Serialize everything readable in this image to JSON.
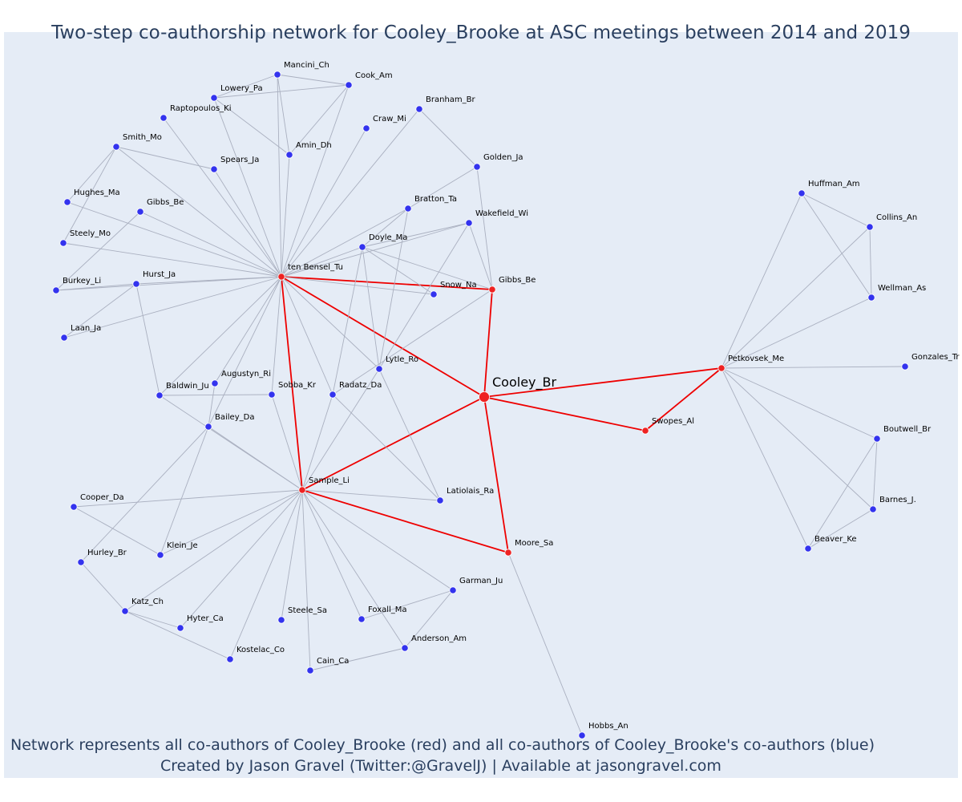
{
  "title": "Two-step co-authorship network for Cooley_Brooke at ASC meetings between 2014 and 2019",
  "caption_line1": "Network represents all co-authors of Cooley_Brooke (red) and all co-authors of Cooley_Brooke's co-authors (blue)",
  "caption_line2": "Created by Jason Gravel (Twitter:@GravelJ) | Available at jasongravel.com",
  "colors": {
    "plot_bg": "#e5ecf6",
    "text": "#2a3f5f",
    "edge_gray": "#aab0c0",
    "edge_red": "#ee0000",
    "node_red": "#ee2222",
    "node_blue": "#3333ee"
  },
  "graph": {
    "ego": "Cooley_Br",
    "nodes": [
      {
        "id": "Cooley_Br",
        "label": "Cooley_Br",
        "group": "ego"
      },
      {
        "id": "ten Bensel_Tu",
        "label": "ten Bensel_Tu",
        "group": "coauthor"
      },
      {
        "id": "Gibbs_Be2",
        "label": "Gibbs_Be",
        "group": "coauthor"
      },
      {
        "id": "Sample_Li",
        "label": "Sample_Li",
        "group": "coauthor"
      },
      {
        "id": "Moore_Sa",
        "label": "Moore_Sa",
        "group": "coauthor"
      },
      {
        "id": "Swopes_Al",
        "label": "Swopes_Al",
        "group": "coauthor"
      },
      {
        "id": "Petkovsek_Me",
        "label": "Petkovsek_Me",
        "group": "coauthor"
      },
      {
        "id": "Mancini_Ch",
        "label": "Mancini_Ch",
        "group": "second"
      },
      {
        "id": "Cook_Am",
        "label": "Cook_Am",
        "group": "second"
      },
      {
        "id": "Lowery_Pa",
        "label": "Lowery_Pa",
        "group": "second"
      },
      {
        "id": "Raptopoulos_Ki",
        "label": "Raptopoulos_Ki",
        "group": "second"
      },
      {
        "id": "Branham_Br",
        "label": "Branham_Br",
        "group": "second"
      },
      {
        "id": "Craw_Mi",
        "label": "Craw_Mi",
        "group": "second"
      },
      {
        "id": "Smith_Mo",
        "label": "Smith_Mo",
        "group": "second"
      },
      {
        "id": "Amin_Dh",
        "label": "Amin_Dh",
        "group": "second"
      },
      {
        "id": "Spears_Ja",
        "label": "Spears_Ja",
        "group": "second"
      },
      {
        "id": "Golden_Ja",
        "label": "Golden_Ja",
        "group": "second"
      },
      {
        "id": "Hughes_Ma",
        "label": "Hughes_Ma",
        "group": "second"
      },
      {
        "id": "Gibbs_Be",
        "label": "Gibbs_Be",
        "group": "second"
      },
      {
        "id": "Bratton_Ta",
        "label": "Bratton_Ta",
        "group": "second"
      },
      {
        "id": "Wakefield_Wi",
        "label": "Wakefield_Wi",
        "group": "second"
      },
      {
        "id": "Steely_Mo",
        "label": "Steely_Mo",
        "group": "second"
      },
      {
        "id": "Doyle_Ma",
        "label": "Doyle_Ma",
        "group": "second"
      },
      {
        "id": "Hurst_Ja",
        "label": "Hurst_Ja",
        "group": "second"
      },
      {
        "id": "Burkey_Li",
        "label": "Burkey_Li",
        "group": "second"
      },
      {
        "id": "Snow_Na",
        "label": "Snow_Na",
        "group": "second"
      },
      {
        "id": "Laan_Ja",
        "label": "Laan_Ja",
        "group": "second"
      },
      {
        "id": "Lytle_Ro",
        "label": "Lytle_Ro",
        "group": "second"
      },
      {
        "id": "Augustyn_Ri",
        "label": "Augustyn_Ri",
        "group": "second"
      },
      {
        "id": "Baldwin_Ju",
        "label": "Baldwin_Ju",
        "group": "second"
      },
      {
        "id": "Sobba_Kr",
        "label": "Sobba_Kr",
        "group": "second"
      },
      {
        "id": "Radatz_Da",
        "label": "Radatz_Da",
        "group": "second"
      },
      {
        "id": "Bailey_Da",
        "label": "Bailey_Da",
        "group": "second"
      },
      {
        "id": "Latiolais_Ra",
        "label": "Latiolais_Ra",
        "group": "second"
      },
      {
        "id": "Cooper_Da",
        "label": "Cooper_Da",
        "group": "second"
      },
      {
        "id": "Klein_Je",
        "label": "Klein_Je",
        "group": "second"
      },
      {
        "id": "Hurley_Br",
        "label": "Hurley_Br",
        "group": "second"
      },
      {
        "id": "Garman_Ju",
        "label": "Garman_Ju",
        "group": "second"
      },
      {
        "id": "Katz_Ch",
        "label": "Katz_Ch",
        "group": "second"
      },
      {
        "id": "Hyter_Ca",
        "label": "Hyter_Ca",
        "group": "second"
      },
      {
        "id": "Steele_Sa",
        "label": "Steele_Sa",
        "group": "second"
      },
      {
        "id": "Foxall_Ma",
        "label": "Foxall_Ma",
        "group": "second"
      },
      {
        "id": "Anderson_Am",
        "label": "Anderson_Am",
        "group": "second"
      },
      {
        "id": "Kostelac_Co",
        "label": "Kostelac_Co",
        "group": "second"
      },
      {
        "id": "Cain_Ca",
        "label": "Cain_Ca",
        "group": "second"
      },
      {
        "id": "Hobbs_An",
        "label": "Hobbs_An",
        "group": "second"
      },
      {
        "id": "Huffman_Am",
        "label": "Huffman_Am",
        "group": "second"
      },
      {
        "id": "Collins_An",
        "label": "Collins_An",
        "group": "second"
      },
      {
        "id": "Wellman_As",
        "label": "Wellman_As",
        "group": "second"
      },
      {
        "id": "Gonzales_Tr",
        "label": "Gonzales_Tr",
        "group": "second"
      },
      {
        "id": "Boutwell_Br",
        "label": "Boutwell_Br",
        "group": "second"
      },
      {
        "id": "Barnes_J",
        "label": "Barnes_J.",
        "group": "second"
      },
      {
        "id": "Beaver_Ke",
        "label": "Beaver_Ke",
        "group": "second"
      }
    ],
    "edges": [
      [
        "Cooley_Br",
        "ten Bensel_Tu"
      ],
      [
        "Cooley_Br",
        "Gibbs_Be2"
      ],
      [
        "Cooley_Br",
        "Sample_Li"
      ],
      [
        "Cooley_Br",
        "Moore_Sa"
      ],
      [
        "Cooley_Br",
        "Swopes_Al"
      ],
      [
        "Cooley_Br",
        "Petkovsek_Me"
      ],
      [
        "ten Bensel_Tu",
        "Gibbs_Be2"
      ],
      [
        "ten Bensel_Tu",
        "Sample_Li"
      ],
      [
        "Sample_Li",
        "Moore_Sa"
      ],
      [
        "Swopes_Al",
        "Petkovsek_Me"
      ],
      [
        "ten Bensel_Tu",
        "Mancini_Ch"
      ],
      [
        "ten Bensel_Tu",
        "Cook_Am"
      ],
      [
        "ten Bensel_Tu",
        "Lowery_Pa"
      ],
      [
        "ten Bensel_Tu",
        "Raptopoulos_Ki"
      ],
      [
        "ten Bensel_Tu",
        "Smith_Mo"
      ],
      [
        "ten Bensel_Tu",
        "Amin_Dh"
      ],
      [
        "ten Bensel_Tu",
        "Spears_Ja"
      ],
      [
        "ten Bensel_Tu",
        "Hughes_Ma"
      ],
      [
        "ten Bensel_Tu",
        "Gibbs_Be"
      ],
      [
        "ten Bensel_Tu",
        "Steely_Mo"
      ],
      [
        "ten Bensel_Tu",
        "Burkey_Li"
      ],
      [
        "ten Bensel_Tu",
        "Hurst_Ja"
      ],
      [
        "ten Bensel_Tu",
        "Laan_Ja"
      ],
      [
        "ten Bensel_Tu",
        "Craw_Mi"
      ],
      [
        "ten Bensel_Tu",
        "Branham_Br"
      ],
      [
        "ten Bensel_Tu",
        "Bratton_Ta"
      ],
      [
        "ten Bensel_Tu",
        "Wakefield_Wi"
      ],
      [
        "ten Bensel_Tu",
        "Doyle_Ma"
      ],
      [
        "ten Bensel_Tu",
        "Snow_Na"
      ],
      [
        "ten Bensel_Tu",
        "Lytle_Ro"
      ],
      [
        "ten Bensel_Tu",
        "Baldwin_Ju"
      ],
      [
        "ten Bensel_Tu",
        "Augustyn_Ri"
      ],
      [
        "ten Bensel_Tu",
        "Sobba_Kr"
      ],
      [
        "ten Bensel_Tu",
        "Bailey_Da"
      ],
      [
        "ten Bensel_Tu",
        "Radatz_Da"
      ],
      [
        "Mancini_Ch",
        "Cook_Am"
      ],
      [
        "Mancini_Ch",
        "Lowery_Pa"
      ],
      [
        "Mancini_Ch",
        "Amin_Dh"
      ],
      [
        "Lowery_Pa",
        "Cook_Am"
      ],
      [
        "Lowery_Pa",
        "Amin_Dh"
      ],
      [
        "Cook_Am",
        "Amin_Dh"
      ],
      [
        "Smith_Mo",
        "Hughes_Ma"
      ],
      [
        "Smith_Mo",
        "Steely_Mo"
      ],
      [
        "Smith_Mo",
        "Spears_Ja"
      ],
      [
        "Gibbs_Be",
        "Burkey_Li"
      ],
      [
        "Hurst_Ja",
        "Burkey_Li"
      ],
      [
        "Hurst_Ja",
        "Laan_Ja"
      ],
      [
        "Hurst_Ja",
        "Baldwin_Ju"
      ],
      [
        "Branham_Br",
        "Golden_Ja"
      ],
      [
        "Golden_Ja",
        "Bratton_Ta"
      ],
      [
        "Golden_Ja",
        "Gibbs_Be2"
      ],
      [
        "Wakefield_Wi",
        "Gibbs_Be2"
      ],
      [
        "Wakefield_Wi",
        "Doyle_Ma"
      ],
      [
        "Wakefield_Wi",
        "Lytle_Ro"
      ],
      [
        "Doyle_Ma",
        "Gibbs_Be2"
      ],
      [
        "Doyle_Ma",
        "Snow_Na"
      ],
      [
        "Doyle_Ma",
        "Lytle_Ro"
      ],
      [
        "Doyle_Ma",
        "Radatz_Da"
      ],
      [
        "Bratton_Ta",
        "Lytle_Ro"
      ],
      [
        "Bratton_Ta",
        "Doyle_Ma"
      ],
      [
        "Gibbs_Be2",
        "Radatz_Da"
      ],
      [
        "Lytle_Ro",
        "Latiolais_Ra"
      ],
      [
        "Lytle_Ro",
        "Sample_Li"
      ],
      [
        "Baldwin_Ju",
        "Sobba_Kr"
      ],
      [
        "Baldwin_Ju",
        "Sample_Li"
      ],
      [
        "Radatz_Da",
        "Sample_Li"
      ],
      [
        "Radatz_Da",
        "Latiolais_Ra"
      ],
      [
        "Augustyn_Ri",
        "Bailey_Da"
      ],
      [
        "Sobba_Kr",
        "Sample_Li"
      ],
      [
        "Bailey_Da",
        "Sample_Li"
      ],
      [
        "Bailey_Da",
        "Klein_Je"
      ],
      [
        "Bailey_Da",
        "Hurley_Br"
      ],
      [
        "Sample_Li",
        "Latiolais_Ra"
      ],
      [
        "Sample_Li",
        "Cooper_Da"
      ],
      [
        "Sample_Li",
        "Klein_Je"
      ],
      [
        "Sample_Li",
        "Katz_Ch"
      ],
      [
        "Sample_Li",
        "Hyter_Ca"
      ],
      [
        "Sample_Li",
        "Kostelac_Co"
      ],
      [
        "Sample_Li",
        "Steele_Sa"
      ],
      [
        "Sample_Li",
        "Cain_Ca"
      ],
      [
        "Sample_Li",
        "Foxall_Ma"
      ],
      [
        "Sample_Li",
        "Anderson_Am"
      ],
      [
        "Sample_Li",
        "Garman_Ju"
      ],
      [
        "Cooper_Da",
        "Klein_Je"
      ],
      [
        "Hurley_Br",
        "Katz_Ch"
      ],
      [
        "Katz_Ch",
        "Hyter_Ca"
      ],
      [
        "Katz_Ch",
        "Kostelac_Co"
      ],
      [
        "Garman_Ju",
        "Foxall_Ma"
      ],
      [
        "Garman_Ju",
        "Anderson_Am"
      ],
      [
        "Anderson_Am",
        "Cain_Ca"
      ],
      [
        "Moore_Sa",
        "Hobbs_An"
      ],
      [
        "Petkovsek_Me",
        "Huffman_Am"
      ],
      [
        "Petkovsek_Me",
        "Collins_An"
      ],
      [
        "Petkovsek_Me",
        "Wellman_As"
      ],
      [
        "Petkovsek_Me",
        "Gonzales_Tr"
      ],
      [
        "Petkovsek_Me",
        "Boutwell_Br"
      ],
      [
        "Petkovsek_Me",
        "Barnes_J"
      ],
      [
        "Petkovsek_Me",
        "Beaver_Ke"
      ],
      [
        "Huffman_Am",
        "Collins_An"
      ],
      [
        "Huffman_Am",
        "Wellman_As"
      ],
      [
        "Collins_An",
        "Wellman_As"
      ],
      [
        "Boutwell_Br",
        "Barnes_J"
      ],
      [
        "Boutwell_Br",
        "Beaver_Ke"
      ],
      [
        "Barnes_J",
        "Beaver_Ke"
      ]
    ]
  }
}
